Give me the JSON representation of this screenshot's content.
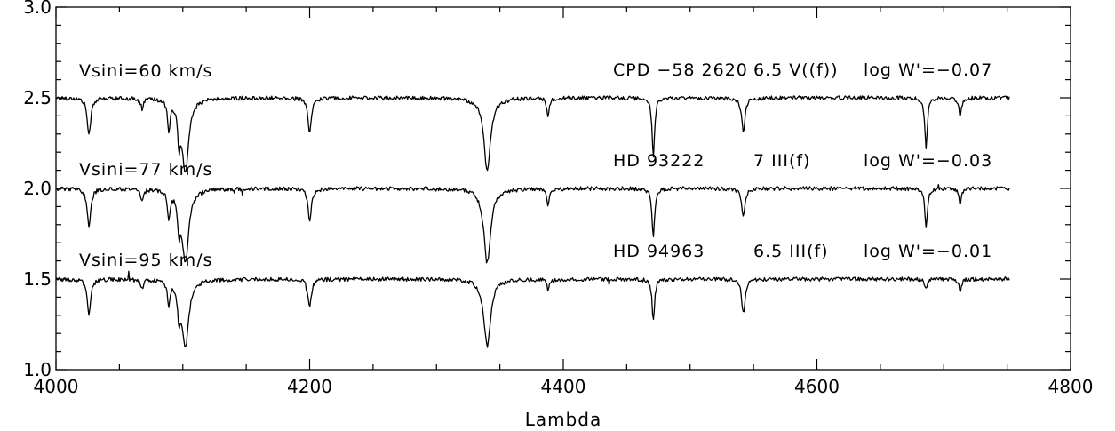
{
  "chart_data": {
    "type": "line",
    "title": "",
    "xlabel": "Lambda",
    "ylabel": "",
    "xlim": [
      4000,
      4800
    ],
    "ylim": [
      1.0,
      3.0
    ],
    "x_ticks": [
      4000,
      4200,
      4400,
      4600,
      4800
    ],
    "x_tick_labels": [
      "4000",
      "4200",
      "4400",
      "4600",
      "4800"
    ],
    "y_ticks": [
      1.0,
      1.5,
      2.0,
      2.5,
      3.0
    ],
    "y_tick_labels": [
      "1.0",
      "1.5",
      "2.0",
      "2.5",
      "3.0"
    ],
    "grid": false,
    "legend": "none",
    "series": [
      {
        "continuum": 2.5,
        "vsini_label": "Vsini=60 km/s",
        "star_label": "CPD −58 2620",
        "type_label": "6.5 V((f))",
        "logw_label": "log W'=−0.07",
        "lines": [
          {
            "x": 4026,
            "y": 2.29
          },
          {
            "x": 4068,
            "y": 2.44
          },
          {
            "x": 4089,
            "y": 2.34
          },
          {
            "x": 4097,
            "y": 2.31
          },
          {
            "x": 4102,
            "y": 2.1
          },
          {
            "x": 4200,
            "y": 2.3
          },
          {
            "x": 4340,
            "y": 2.1
          },
          {
            "x": 4388,
            "y": 2.4
          },
          {
            "x": 4471,
            "y": 2.18
          },
          {
            "x": 4542,
            "y": 2.31
          },
          {
            "x": 4686,
            "y": 2.22
          },
          {
            "x": 4713,
            "y": 2.4
          }
        ]
      },
      {
        "continuum": 2.0,
        "vsini_label": "Vsini=77 km/s",
        "star_label": "HD 93222",
        "type_label": "7 III(f)",
        "logw_label": "log W'=−0.03",
        "lines": [
          {
            "x": 4026,
            "y": 1.78
          },
          {
            "x": 4068,
            "y": 1.93
          },
          {
            "x": 4089,
            "y": 1.85
          },
          {
            "x": 4097,
            "y": 1.82
          },
          {
            "x": 4102,
            "y": 1.6
          },
          {
            "x": 4200,
            "y": 1.82
          },
          {
            "x": 4340,
            "y": 1.59
          },
          {
            "x": 4388,
            "y": 1.91
          },
          {
            "x": 4471,
            "y": 1.73
          },
          {
            "x": 4542,
            "y": 1.84
          },
          {
            "x": 4686,
            "y": 1.78
          },
          {
            "x": 4713,
            "y": 1.91
          }
        ]
      },
      {
        "continuum": 1.5,
        "vsini_label": "Vsini=95 km/s",
        "star_label": "HD 94963",
        "type_label": "6.5 III(f)",
        "logw_label": "log W'=−0.01",
        "lines": [
          {
            "x": 4026,
            "y": 1.3
          },
          {
            "x": 4068,
            "y": 1.45
          },
          {
            "x": 4089,
            "y": 1.37
          },
          {
            "x": 4097,
            "y": 1.34
          },
          {
            "x": 4102,
            "y": 1.13
          },
          {
            "x": 4200,
            "y": 1.35
          },
          {
            "x": 4340,
            "y": 1.13
          },
          {
            "x": 4388,
            "y": 1.44
          },
          {
            "x": 4471,
            "y": 1.27
          },
          {
            "x": 4542,
            "y": 1.31
          },
          {
            "x": 4686,
            "y": 1.44
          },
          {
            "x": 4713,
            "y": 1.43
          }
        ]
      }
    ]
  }
}
